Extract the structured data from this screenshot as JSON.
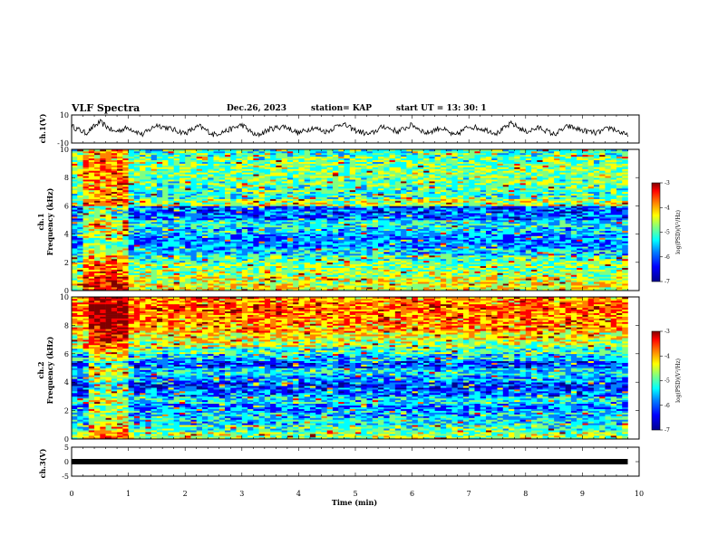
{
  "header": {
    "title": "VLF Spectra",
    "date": "Dec.26, 2023",
    "station": "station= KAP",
    "start": "start  UT =   13: 30: 1"
  },
  "colors": {
    "trace": "#000000",
    "colormap": [
      "#00008f",
      "#0000ff",
      "#0080ff",
      "#00ffff",
      "#80ff80",
      "#ffff00",
      "#ff8000",
      "#ff0000",
      "#800000"
    ]
  },
  "chart_data": [
    {
      "type": "line",
      "name": "ch1-waveform",
      "ylabel": "ch.1(V)",
      "ylim": [
        -10,
        10
      ],
      "yticks": [
        "10",
        "-10"
      ],
      "xlim": [
        0,
        10
      ],
      "x": [
        0,
        0.25,
        0.5,
        0.75,
        1,
        1.25,
        1.5,
        1.75,
        2,
        2.25,
        2.5,
        2.75,
        3,
        3.25,
        3.5,
        3.75,
        4,
        4.25,
        4.5,
        4.75,
        5,
        5.25,
        5.5,
        5.75,
        6,
        6.25,
        6.5,
        6.75,
        7,
        7.25,
        7.5,
        7.75,
        8,
        8.25,
        8.5,
        8.75,
        9,
        9.25,
        9.5,
        9.75,
        9.8
      ],
      "y": [
        2,
        -3,
        5,
        -2,
        1,
        -4,
        3,
        0,
        -3,
        2,
        -4,
        -1,
        3,
        -5,
        0,
        2,
        -3,
        1,
        -2,
        4,
        -1,
        -4,
        2,
        -2,
        3,
        -3,
        1,
        -5,
        2,
        0,
        -3,
        4,
        -2,
        1,
        -4,
        2,
        -1,
        -3,
        1,
        -4,
        -5
      ],
      "grid": false
    },
    {
      "type": "heatmap",
      "name": "ch1-spectrogram",
      "ylabel": "ch.1\nFrequency  (kHz)",
      "ylim": [
        0,
        10
      ],
      "yticks": [
        "0",
        "2",
        "4",
        "6",
        "8",
        "10"
      ],
      "xlim": [
        0,
        10
      ],
      "colorbar": {
        "label": "log(PSD)(V²/Hz)",
        "ticks": [
          "-3",
          "-4",
          "-5",
          "-6",
          "-7"
        ],
        "range": [
          -7,
          -3
        ]
      },
      "freq_kHz": [
        0.5,
        1,
        1.5,
        2,
        2.5,
        3,
        3.5,
        4,
        4.5,
        5,
        5.5,
        6,
        6.5,
        7,
        7.5,
        8,
        8.5,
        9,
        9.5,
        10
      ],
      "level_by_freq": [
        -4.6,
        -4.7,
        -4.9,
        -5.0,
        -5.2,
        -5.6,
        -5.9,
        -5.9,
        -5.6,
        -5.4,
        -6.0,
        -6.1,
        -4.8,
        -5.3,
        -5.2,
        -5.1,
        -5.0,
        -5.0,
        -5.1,
        -5.3
      ],
      "burst_minutes": [
        0.2,
        0.9
      ],
      "grid": false
    },
    {
      "type": "heatmap",
      "name": "ch2-spectrogram",
      "ylabel": "ch.2\nFrequency  (kHz)",
      "ylim": [
        0,
        10
      ],
      "yticks": [
        "0",
        "2",
        "4",
        "6",
        "8",
        "10"
      ],
      "xlim": [
        0,
        10
      ],
      "colorbar": {
        "label": "log(PSD)(V²/Hz)",
        "ticks": [
          "-3",
          "-4",
          "-5",
          "-6",
          "-7"
        ],
        "range": [
          -7,
          -3
        ]
      },
      "freq_kHz": [
        0.5,
        1,
        1.5,
        2,
        2.5,
        3,
        3.5,
        4,
        4.5,
        5,
        5.5,
        6,
        6.5,
        7,
        7.5,
        8,
        8.5,
        9,
        9.5,
        10
      ],
      "level_by_freq": [
        -4.9,
        -5.2,
        -5.5,
        -5.6,
        -5.9,
        -5.5,
        -6.0,
        -6.2,
        -5.8,
        -5.5,
        -6.1,
        -5.6,
        -5.2,
        -4.8,
        -4.6,
        -4.3,
        -4.2,
        -4.1,
        -4.0,
        -4.2
      ],
      "burst_minutes": [
        0.3,
        0.9
      ],
      "grid": false
    },
    {
      "type": "line",
      "name": "ch3-waveform",
      "ylabel": "ch.3(V)",
      "ylim": [
        -5,
        5
      ],
      "yticks": [
        "5",
        "0",
        "-5"
      ],
      "xlim": [
        0,
        10
      ],
      "x": [
        0,
        9.8
      ],
      "y": [
        0,
        0
      ],
      "xlabel": "Time  (min)",
      "xticks": [
        "0",
        "1",
        "2",
        "3",
        "4",
        "5",
        "6",
        "7",
        "8",
        "9",
        "10"
      ],
      "grid": false
    }
  ]
}
